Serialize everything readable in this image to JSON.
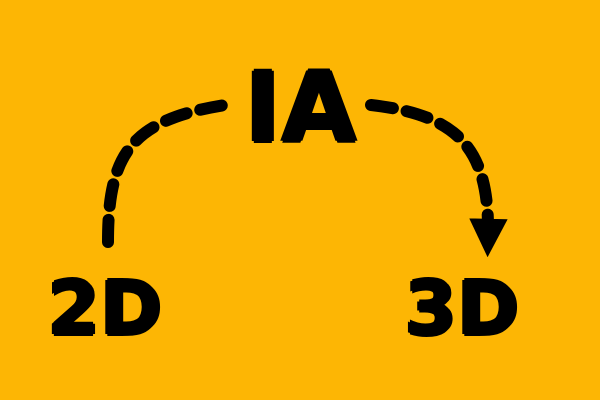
{
  "diagram": {
    "nodes": {
      "center": "IA",
      "left": "2D",
      "right": "3D"
    },
    "edges": [
      {
        "from": "2D",
        "to": "IA",
        "style": "dashed",
        "arrowhead": false
      },
      {
        "from": "IA",
        "to": "3D",
        "style": "dashed",
        "arrowhead": true
      }
    ]
  },
  "colors": {
    "background": "#FDB604",
    "foreground": "#000000"
  }
}
